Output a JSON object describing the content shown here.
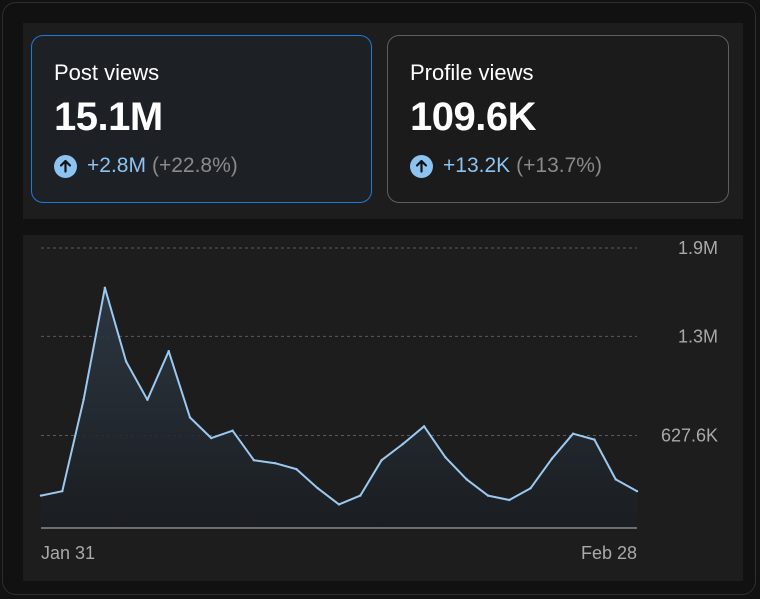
{
  "cards": [
    {
      "title": "Post views",
      "value": "15.1M",
      "delta": "+2.8M",
      "pct": "(+22.8%)",
      "selected": true
    },
    {
      "title": "Profile views",
      "value": "109.6K",
      "delta": "+13.2K",
      "pct": "(+13.7%)",
      "selected": false
    }
  ],
  "colors": {
    "accent": "#1d7ad9",
    "delta": "#8cc3f1",
    "line": "#9cc9f0",
    "muted": "#8a8a8a"
  },
  "chart_data": {
    "type": "area",
    "x_labels": [
      "Jan 31",
      "Feb 28"
    ],
    "y_ticks": [
      {
        "value": 627600,
        "label": "627.6K"
      },
      {
        "value": 1300000,
        "label": "1.3M"
      },
      {
        "value": 1900000,
        "label": "1.9M"
      }
    ],
    "ylim": [
      0,
      1900000
    ],
    "grid": "horizontal dashed",
    "values": [
      220000,
      250000,
      870000,
      1630000,
      1130000,
      870000,
      1200000,
      750000,
      610000,
      660000,
      460000,
      440000,
      400000,
      270000,
      160000,
      220000,
      460000,
      570000,
      690000,
      480000,
      330000,
      220000,
      190000,
      270000,
      470000,
      640000,
      600000,
      330000,
      250000
    ]
  }
}
